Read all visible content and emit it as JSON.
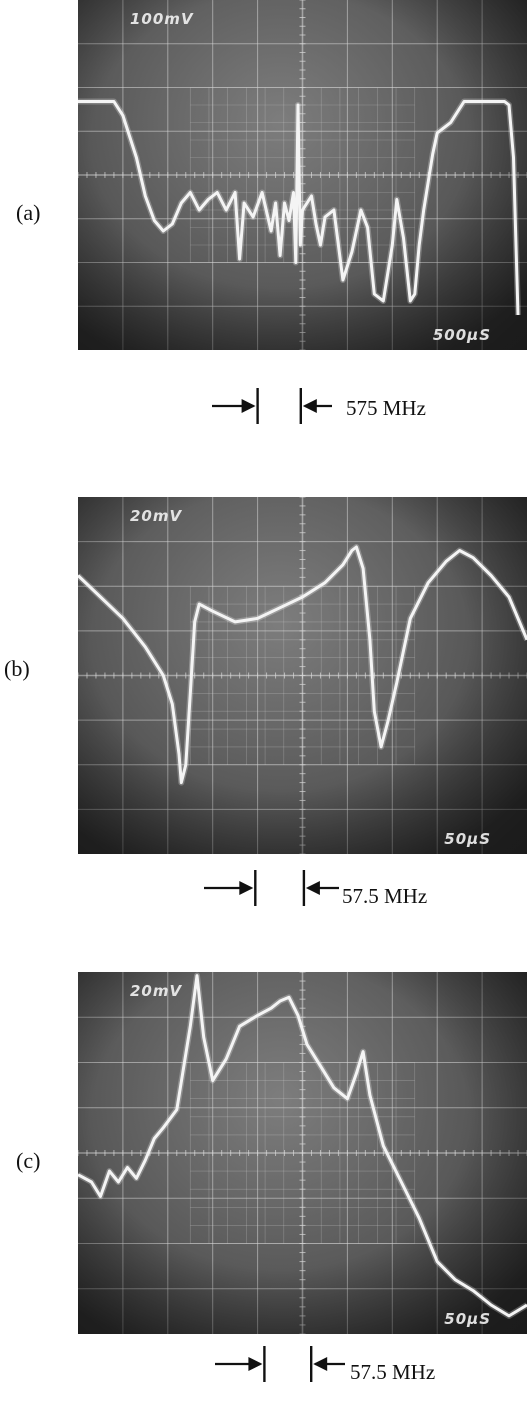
{
  "panels": [
    {
      "label": "(a)",
      "voltage_scale": "100mV",
      "time_scale": "500µS",
      "frequency_label": "575  MHz"
    },
    {
      "label": "(b)",
      "voltage_scale": "20mV",
      "time_scale": "50µS",
      "frequency_label": "57.5  MHz"
    },
    {
      "label": "(c)",
      "voltage_scale": "20mV",
      "time_scale": "50µS",
      "frequency_label": "57.5  MHz"
    }
  ],
  "colors": {
    "screen": "#585858",
    "grid": "#d8d8d8",
    "trace": "#f4f4f4"
  }
}
